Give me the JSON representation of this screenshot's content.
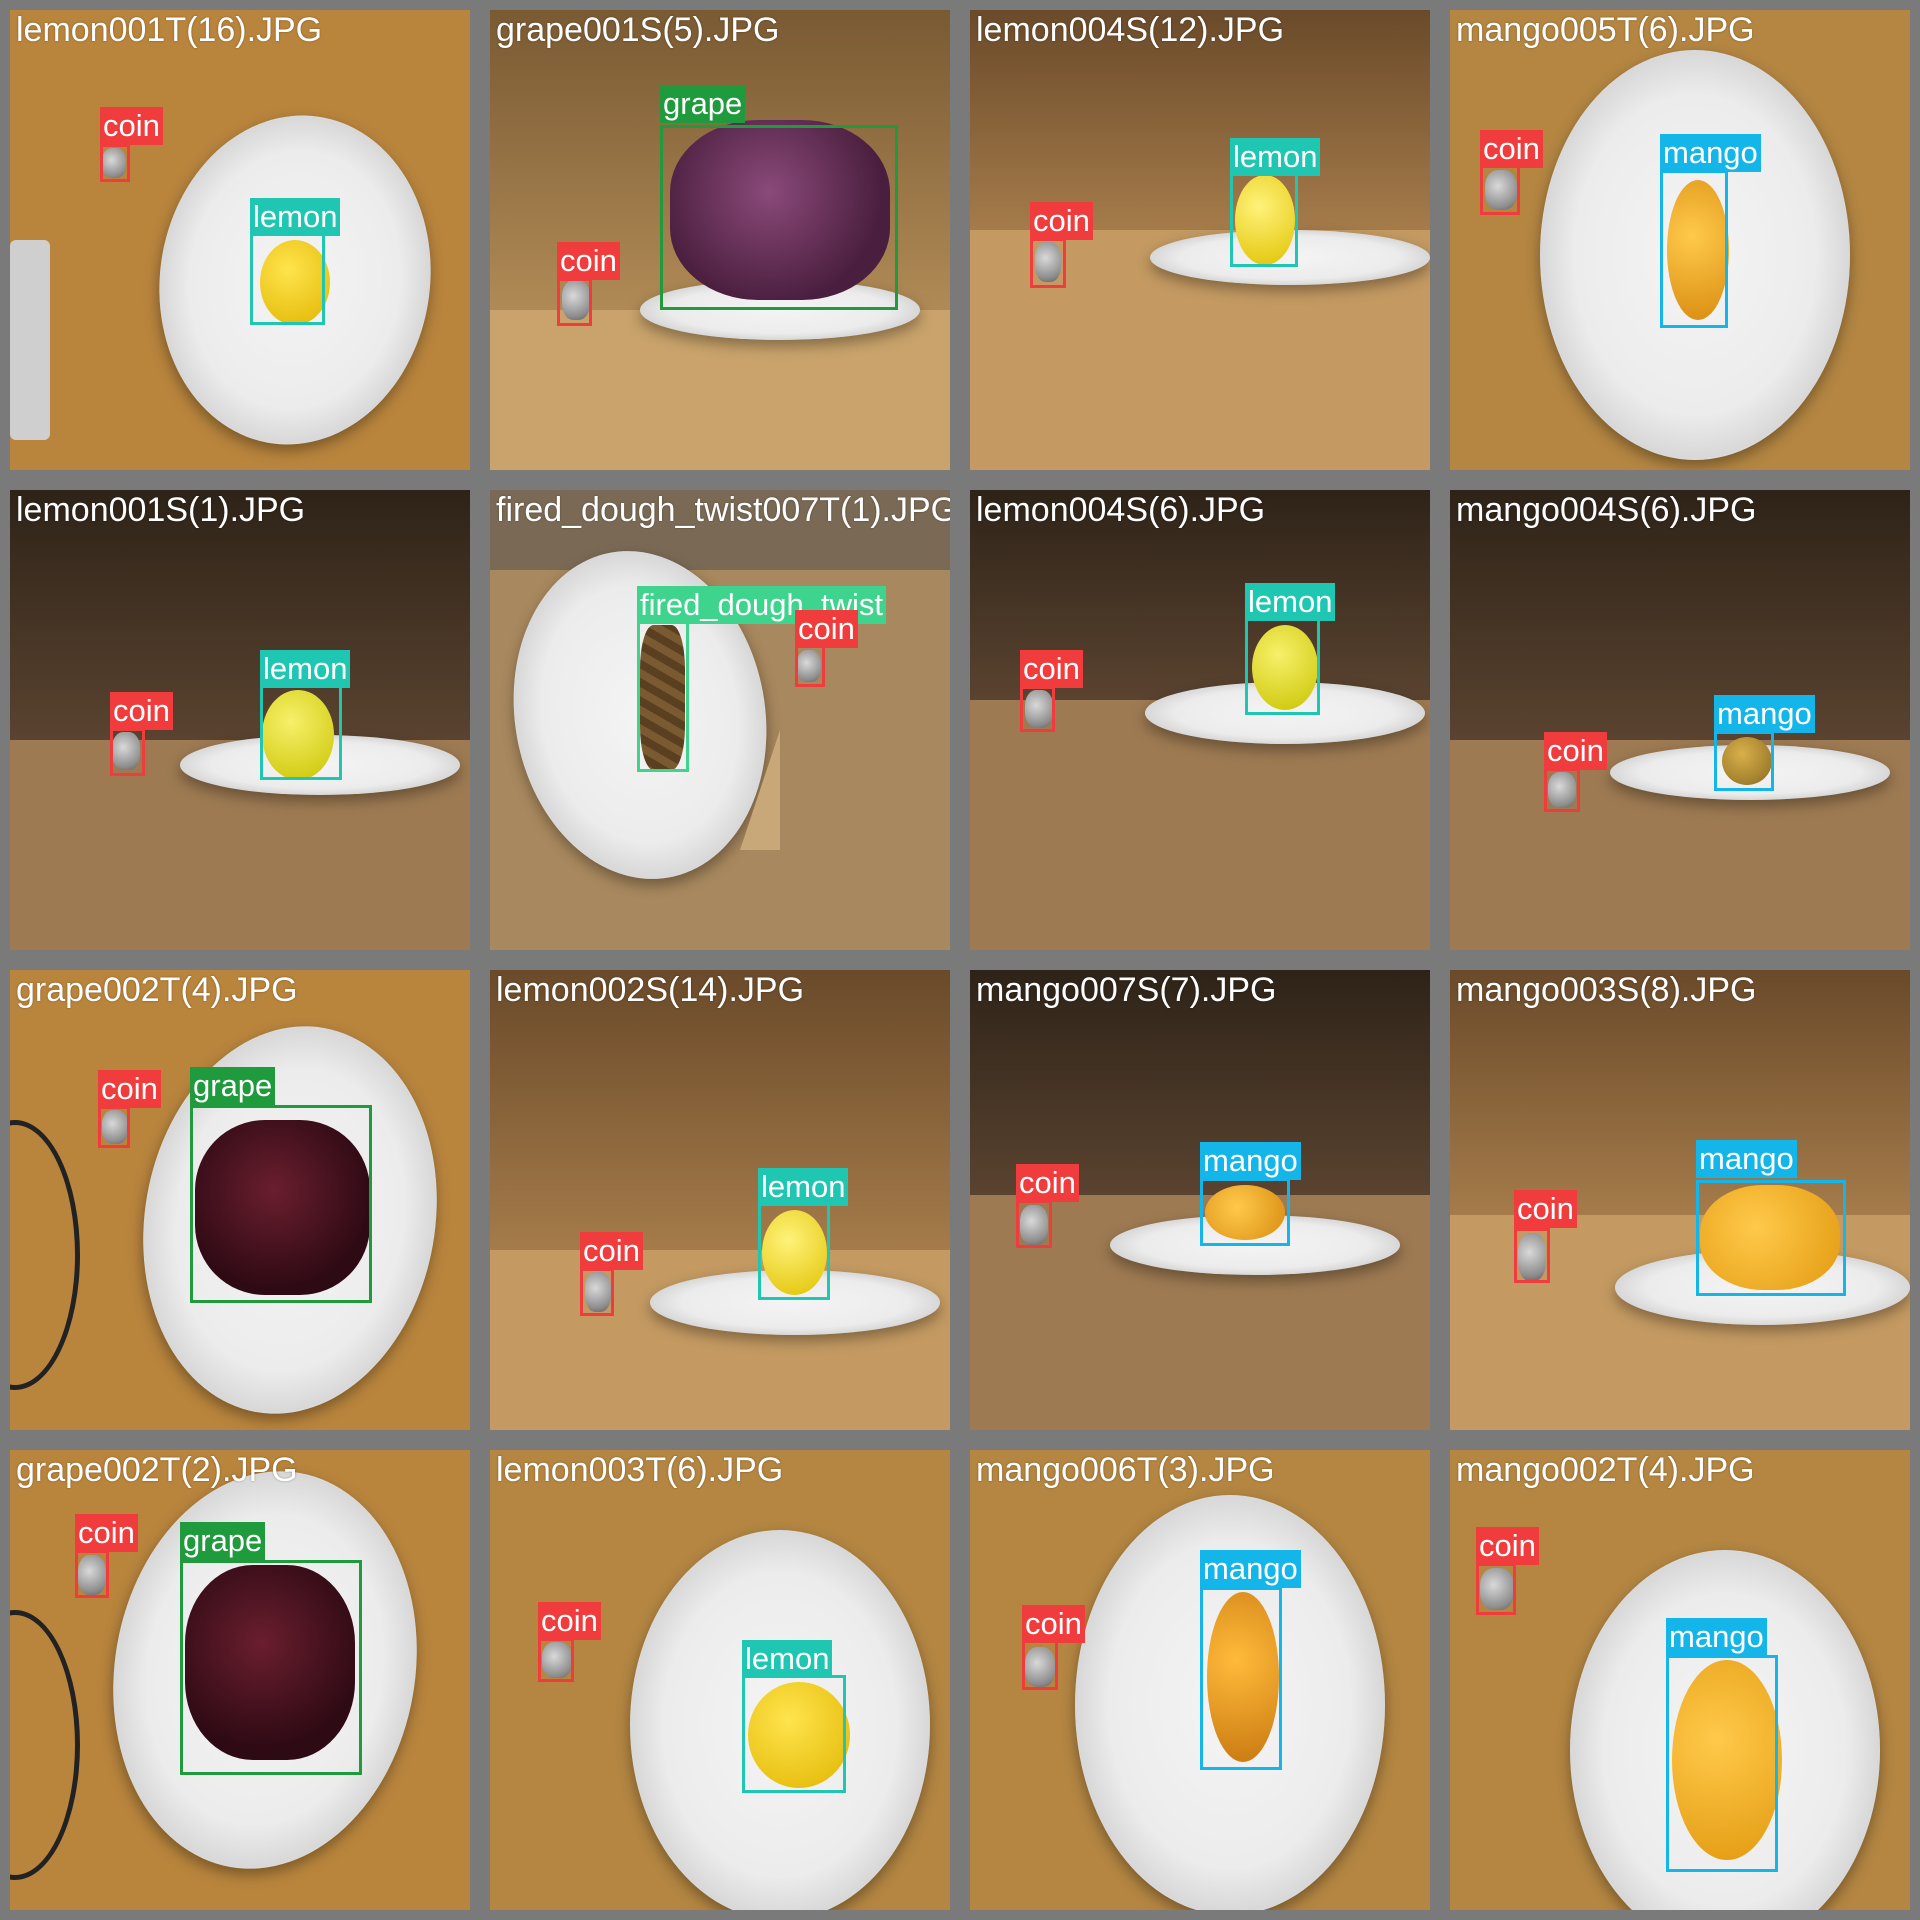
{
  "colors": {
    "coin": "#f03c3c",
    "lemon": "#1fc7b2",
    "grape": "#1f9a3c",
    "mango": "#14b6ea",
    "fired_dough_twist": "#3fd48d"
  },
  "tiles": [
    {
      "file": "lemon001T(16).JPG",
      "labels": [
        "coin",
        "lemon"
      ]
    },
    {
      "file": "grape001S(5).JPG",
      "labels": [
        "grape",
        "coin"
      ]
    },
    {
      "file": "lemon004S(12).JPG",
      "labels": [
        "lemon",
        "coin"
      ]
    },
    {
      "file": "mango005T(6).JPG",
      "labels": [
        "coin",
        "mango"
      ]
    },
    {
      "file": "lemon001S(1).JPG",
      "labels": [
        "lemon",
        "coin"
      ]
    },
    {
      "file": "fired_dough_twist007T(1).JPG",
      "labels": [
        "fired_dough_twist",
        "coin"
      ]
    },
    {
      "file": "lemon004S(6).JPG",
      "labels": [
        "lemon",
        "coin"
      ]
    },
    {
      "file": "mango004S(6).JPG",
      "labels": [
        "mango",
        "coin"
      ]
    },
    {
      "file": "grape002T(4).JPG",
      "labels": [
        "coin",
        "grape"
      ]
    },
    {
      "file": "lemon002S(14).JPG",
      "labels": [
        "lemon",
        "coin"
      ]
    },
    {
      "file": "mango007S(7).JPG",
      "labels": [
        "mango",
        "coin"
      ]
    },
    {
      "file": "mango003S(8).JPG",
      "labels": [
        "mango",
        "coin"
      ]
    },
    {
      "file": "grape002T(2).JPG",
      "labels": [
        "coin",
        "grape"
      ]
    },
    {
      "file": "lemon003T(6).JPG",
      "labels": [
        "coin",
        "lemon"
      ]
    },
    {
      "file": "mango006T(3).JPG",
      "labels": [
        "coin",
        "mango"
      ]
    },
    {
      "file": "mango002T(4).JPG",
      "labels": [
        "coin",
        "mango"
      ]
    }
  ]
}
